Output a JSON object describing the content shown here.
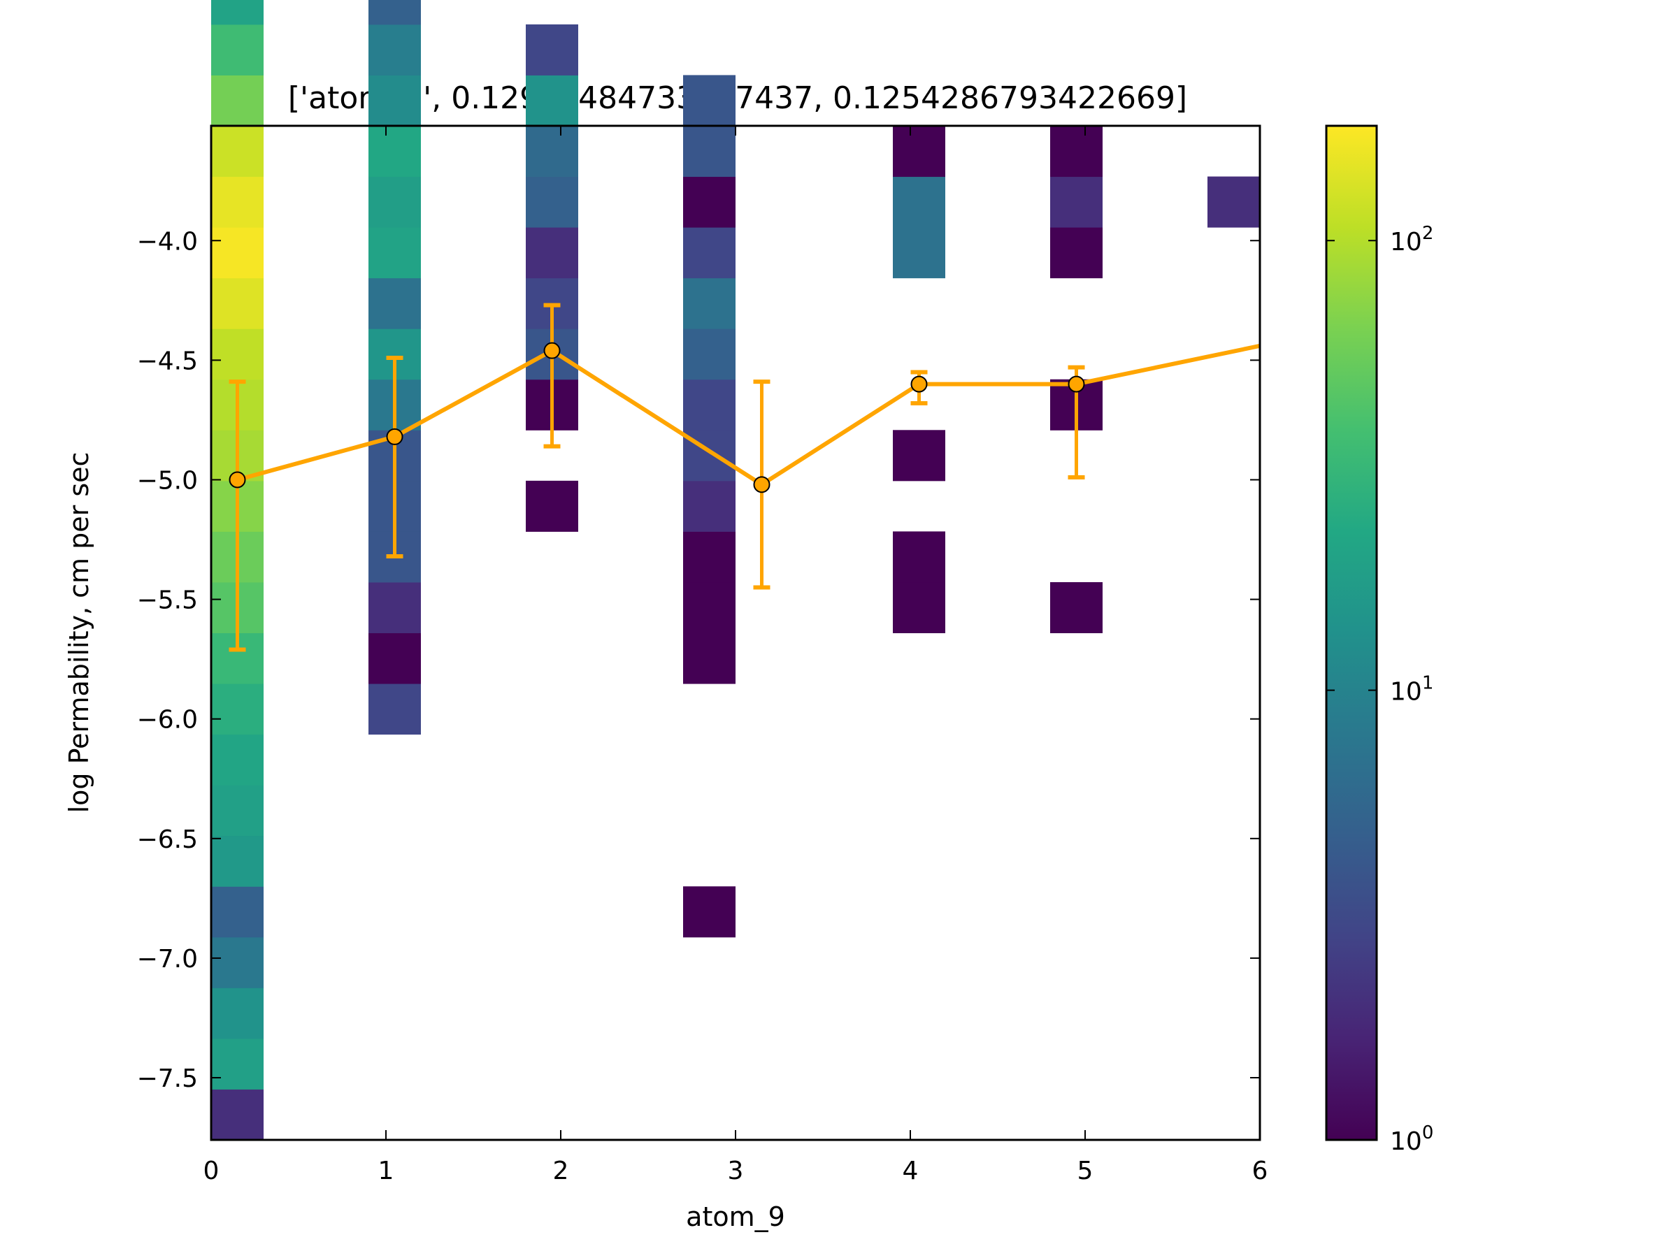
{
  "chart_data": {
    "type": "heatmap",
    "title": "['atom_9', 0.12965484733587437, 0.1254286793422669]",
    "xlabel": "atom_9",
    "ylabel": "log Permability, cm per sec",
    "xlim": [
      0,
      6
    ],
    "ylim": [
      -7.76,
      -3.52
    ],
    "x_ticks": [
      "0",
      "1",
      "2",
      "3",
      "4",
      "5",
      "6"
    ],
    "y_ticks": [
      "−4.0",
      "−4.5",
      "−5.0",
      "−5.5",
      "−6.0",
      "−6.5",
      "−7.0",
      "−7.5"
    ],
    "y_tick_values": [
      -4.0,
      -4.5,
      -5.0,
      -5.5,
      -6.0,
      -6.5,
      -7.0,
      -7.5
    ],
    "colorbar": {
      "scale": "log",
      "range": [
        1,
        180
      ],
      "tick_values": [
        1,
        10,
        100
      ],
      "ticks": [
        "10",
        "10",
        "10"
      ],
      "tick_exponents": [
        "0",
        "1",
        "2"
      ],
      "colormap": "viridis"
    },
    "bin_height": 0.212,
    "bin_y_start": -7.76,
    "columns": [
      {
        "x0": 0.0,
        "x1": 0.3,
        "counts": [
          2,
          19,
          14,
          8,
          5,
          16,
          19,
          21,
          26,
          32,
          45,
          55,
          70,
          90,
          100,
          110,
          140,
          170,
          150,
          120,
          60,
          35,
          20,
          1
        ]
      },
      {
        "x0": 0.9,
        "x1": 1.2,
        "counts": [
          0,
          0,
          0,
          0,
          0,
          0,
          0,
          0,
          3,
          1,
          2,
          4,
          4,
          4,
          8,
          15,
          7,
          20,
          18,
          22,
          12,
          9,
          5,
          2
        ]
      },
      {
        "x0": 1.8,
        "x1": 2.1,
        "counts": [
          0,
          0,
          0,
          0,
          0,
          0,
          0,
          0,
          0,
          0,
          0,
          0,
          1,
          0,
          1,
          4,
          3,
          2,
          5,
          6,
          14,
          3,
          0,
          0
        ]
      },
      {
        "x0": 2.7,
        "x1": 3.0,
        "counts": [
          0,
          0,
          0,
          0,
          1,
          0,
          0,
          0,
          0,
          1,
          1,
          1,
          2,
          3,
          3,
          5,
          7,
          3,
          1,
          4,
          4,
          0,
          0,
          0
        ]
      },
      {
        "x0": 3.9,
        "x1": 4.2,
        "counts": [
          0,
          0,
          0,
          0,
          0,
          0,
          0,
          0,
          0,
          0,
          1,
          1,
          0,
          1,
          0,
          0,
          0,
          7,
          7,
          1,
          0,
          0,
          0,
          0
        ]
      },
      {
        "x0": 4.8,
        "x1": 5.1,
        "counts": [
          0,
          0,
          0,
          0,
          0,
          0,
          0,
          0,
          0,
          0,
          1,
          0,
          0,
          0,
          1,
          0,
          0,
          1,
          2,
          1,
          0,
          0,
          0,
          0
        ]
      },
      {
        "x0": 5.7,
        "x1": 6.0,
        "counts": [
          0,
          0,
          0,
          0,
          0,
          0,
          0,
          0,
          0,
          0,
          0,
          0,
          0,
          0,
          0,
          0,
          0,
          0,
          2,
          0,
          0,
          0,
          0,
          0
        ]
      }
    ],
    "series": [
      {
        "type": "line-errorbar",
        "color": "#FFA500",
        "x": [
          0.15,
          1.05,
          1.95,
          3.15,
          4.05,
          4.95,
          6.0
        ],
        "y": [
          -5.0,
          -4.82,
          -4.46,
          -5.02,
          -4.6,
          -4.6,
          -4.44
        ],
        "err_low": [
          0.71,
          0.5,
          0.4,
          0.43,
          0.08,
          0.39,
          null
        ],
        "err_high": [
          0.41,
          0.33,
          0.19,
          0.43,
          0.05,
          0.07,
          null
        ],
        "markers": [
          true,
          true,
          true,
          true,
          true,
          true,
          false
        ]
      }
    ],
    "grid": false
  }
}
